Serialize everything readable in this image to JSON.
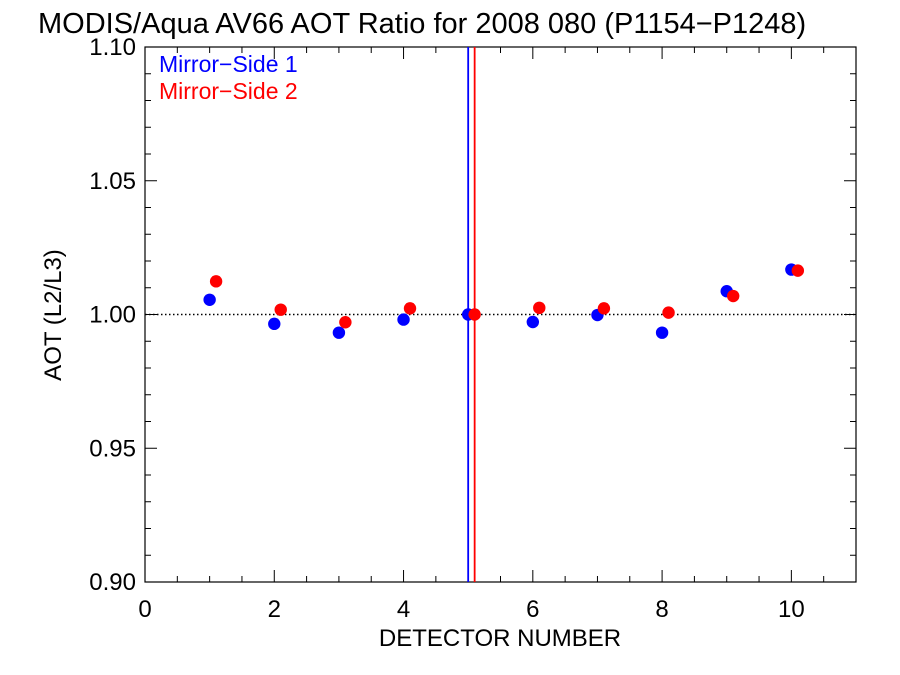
{
  "chart_data": {
    "type": "scatter",
    "title": "MODIS/Aqua AV66 AOT Ratio for 2008 080 (P1154−P1248)",
    "xlabel": "DETECTOR NUMBER",
    "ylabel": "AOT (L2/L3)",
    "xlim": [
      0,
      11
    ],
    "ylim": [
      0.9,
      1.1
    ],
    "x_ticks": [
      0,
      2,
      4,
      6,
      8,
      10
    ],
    "x_tick_labels": [
      "0",
      "2",
      "4",
      "6",
      "8",
      "10"
    ],
    "y_ticks": [
      0.9,
      0.95,
      1.0,
      1.05,
      1.1
    ],
    "y_tick_labels": [
      "0.90",
      "0.95",
      "1.00",
      "1.05",
      "1.10"
    ],
    "grid": false,
    "legend_position": "top-left",
    "reference_line": {
      "y": 1.0,
      "style": "dotted",
      "color": "#000000"
    },
    "vertical_lines": [
      {
        "x": 5.0,
        "color": "#0000ff"
      },
      {
        "x": 5.1,
        "color": "#ff0000"
      }
    ],
    "series": [
      {
        "name": "Mirror−Side 1",
        "color": "#0000ff",
        "x": [
          1,
          2,
          3,
          4,
          5,
          6,
          7,
          8,
          9,
          10
        ],
        "y": [
          1.0055,
          0.9965,
          0.9932,
          0.9981,
          1.0,
          0.9972,
          0.9998,
          0.9932,
          1.0087,
          1.0168
        ]
      },
      {
        "name": "Mirror−Side 2",
        "color": "#ff0000",
        "x": [
          1.1,
          2.1,
          3.1,
          4.1,
          5.1,
          6.1,
          7.1,
          8.1,
          9.1,
          10.1
        ],
        "y": [
          1.0124,
          1.0018,
          0.9971,
          1.0023,
          1.0,
          1.0025,
          1.0023,
          1.0007,
          1.0069,
          1.0164
        ]
      }
    ]
  }
}
